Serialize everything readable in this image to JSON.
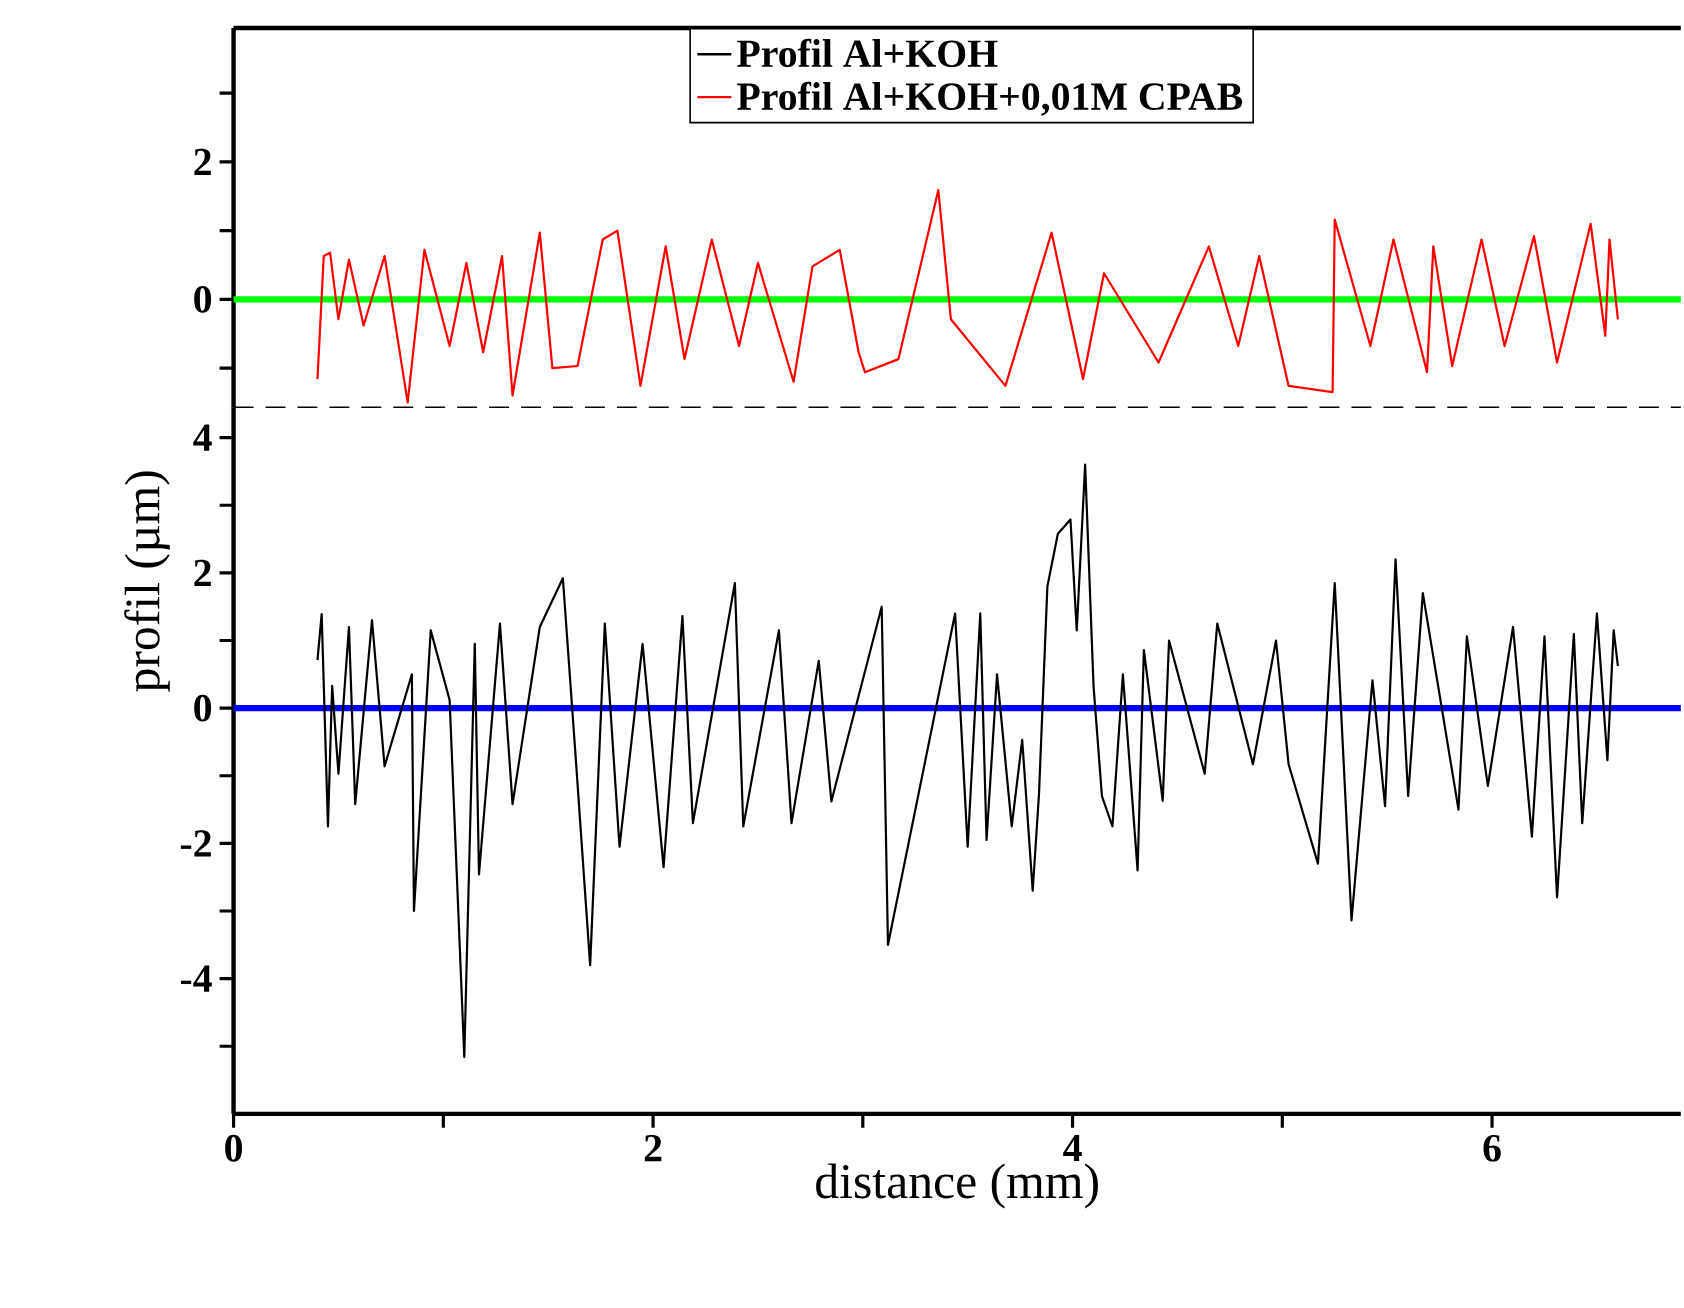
{
  "chart_data": [
    {
      "type": "line",
      "xlim": [
        0,
        6.9
      ],
      "ylim": [
        -1.57,
        3.95
      ],
      "yticks": [
        {
          "value": -1,
          "label": null
        },
        0,
        {
          "value": 1,
          "label": null
        },
        2,
        {
          "value": 3,
          "label": null
        }
      ],
      "tick_labels": "y",
      "legend": "top",
      "ref_lines": [
        {
          "axis": "y",
          "value": 0,
          "color": "#00ff00"
        }
      ],
      "series": [
        {
          "name": "Profil Al+KOH+0,01M CPAB",
          "color": "#ff0000",
          "x": [
            0.4,
            0.43,
            0.46,
            0.5,
            0.55,
            0.62,
            0.72,
            0.83,
            0.91,
            1.03,
            1.11,
            1.19,
            1.28,
            1.33,
            1.46,
            1.52,
            1.64,
            1.76,
            1.83,
            1.94,
            2.06,
            2.15,
            2.28,
            2.41,
            2.5,
            2.67,
            2.76,
            2.89,
            2.98,
            3.01,
            3.17,
            3.36,
            3.42,
            3.68,
            3.9,
            4.05,
            4.15,
            4.41,
            4.65,
            4.79,
            4.89,
            5.03,
            5.24,
            5.25,
            5.42,
            5.53,
            5.69,
            5.72,
            5.81,
            5.95,
            6.06,
            6.2,
            6.31,
            6.47,
            6.54,
            6.56,
            6.6
          ],
          "values": [
            -1.16,
            0.63,
            0.68,
            -0.29,
            0.58,
            -0.38,
            0.63,
            -1.5,
            0.72,
            -0.68,
            0.53,
            -0.77,
            0.63,
            -1.4,
            0.97,
            -1.0,
            -0.97,
            0.87,
            1.0,
            -1.26,
            0.77,
            -0.87,
            0.87,
            -0.68,
            0.53,
            -1.2,
            0.48,
            0.72,
            -0.77,
            -1.06,
            -0.87,
            1.59,
            -0.29,
            -1.26,
            0.97,
            -1.16,
            0.38,
            -0.92,
            0.77,
            -0.68,
            0.63,
            -1.26,
            -1.35,
            1.16,
            -0.68,
            0.87,
            -1.06,
            0.77,
            -0.97,
            0.87,
            -0.68,
            0.92,
            -0.92,
            1.1,
            -0.53,
            0.87,
            -0.29
          ]
        }
      ]
    },
    {
      "type": "line",
      "xlabel": "distance (mm)",
      "ylabel": "profil (µm)",
      "xlim": [
        0,
        6.9
      ],
      "ylim": [
        -6,
        4.45
      ],
      "xticks": [
        0,
        {
          "value": 1,
          "label": null
        },
        2,
        {
          "value": 3,
          "label": null
        },
        4,
        {
          "value": 5,
          "label": null
        },
        6
      ],
      "yticks": [
        {
          "value": -5,
          "label": null
        },
        -4,
        {
          "value": -3,
          "label": null
        },
        -2,
        {
          "value": -1,
          "label": null
        },
        0,
        {
          "value": 1,
          "label": null
        },
        2,
        {
          "value": 3,
          "label": null
        },
        4
      ],
      "ref_lines": [
        {
          "axis": "y",
          "value": 0,
          "color": "#0000ff"
        }
      ],
      "series": [
        {
          "name": "Profil Al+KOH",
          "color": "#000000",
          "x": [
            0.4,
            0.42,
            0.45,
            0.47,
            0.5,
            0.55,
            0.58,
            0.66,
            0.72,
            0.85,
            0.86,
            0.94,
            1.03,
            1.1,
            1.15,
            1.17,
            1.27,
            1.33,
            1.46,
            1.57,
            1.63,
            1.7,
            1.77,
            1.84,
            1.95,
            2.05,
            2.14,
            2.19,
            2.39,
            2.43,
            2.6,
            2.66,
            2.79,
            2.85,
            3.09,
            3.12,
            3.44,
            3.5,
            3.56,
            3.59,
            3.64,
            3.71,
            3.76,
            3.81,
            3.84,
            3.88,
            3.93,
            3.99,
            4.02,
            4.06,
            4.1,
            4.14,
            4.19,
            4.24,
            4.31,
            4.34,
            4.43,
            4.46,
            4.63,
            4.69,
            4.86,
            4.97,
            5.03,
            5.17,
            5.25,
            5.33,
            5.43,
            5.49,
            5.54,
            5.6,
            5.67,
            5.84,
            5.88,
            5.98,
            6.1,
            6.19,
            6.25,
            6.31,
            6.39,
            6.43,
            6.5,
            6.55,
            6.58,
            6.6
          ],
          "values": [
            0.71,
            1.39,
            -1.75,
            0.33,
            -0.97,
            1.2,
            -1.42,
            1.3,
            -0.86,
            0.5,
            -3.0,
            1.15,
            0.12,
            -5.16,
            0.95,
            -2.46,
            1.25,
            -1.42,
            1.2,
            1.92,
            -0.68,
            -3.8,
            1.25,
            -2.05,
            0.95,
            -2.35,
            1.36,
            -1.7,
            1.85,
            -1.75,
            1.15,
            -1.7,
            0.7,
            -1.38,
            1.5,
            -3.5,
            1.4,
            -2.05,
            1.4,
            -1.95,
            0.5,
            -1.75,
            -0.47,
            -2.7,
            -1.27,
            1.8,
            2.58,
            2.79,
            1.15,
            3.6,
            0.33,
            -1.3,
            -1.75,
            0.5,
            -2.4,
            0.86,
            -1.37,
            1.0,
            -0.97,
            1.25,
            -0.83,
            1.0,
            -0.83,
            -2.3,
            1.85,
            -3.14,
            0.41,
            -1.45,
            2.2,
            -1.3,
            1.7,
            -1.5,
            1.06,
            -1.15,
            1.2,
            -1.9,
            1.06,
            -2.8,
            1.1,
            -1.7,
            1.4,
            -0.77,
            1.15,
            0.62
          ]
        }
      ]
    }
  ]
}
